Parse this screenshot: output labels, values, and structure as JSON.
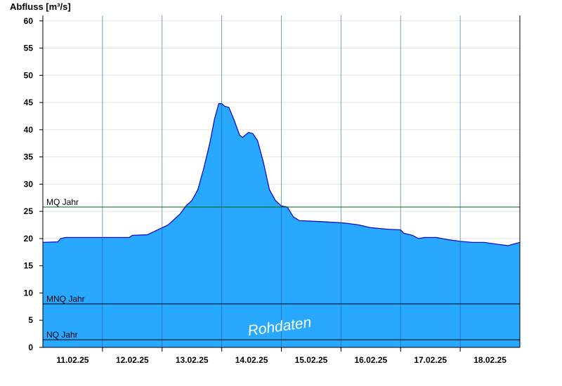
{
  "chart_data": {
    "type": "area",
    "ylabel": "Abfluss [m³/s]",
    "xlabel": "",
    "ylim": [
      0,
      61
    ],
    "yticks": [
      0,
      5,
      10,
      15,
      20,
      25,
      30,
      35,
      40,
      45,
      50,
      55,
      60
    ],
    "xlim": [
      0,
      8
    ],
    "xtick_labels": [
      "11.02.25",
      "12.02.25",
      "13.02.25",
      "14.02.25",
      "15.02.25",
      "16.02.25",
      "17.02.25",
      "18.02.25"
    ],
    "day_boundaries": [
      1,
      2,
      3,
      4,
      5,
      6,
      7
    ],
    "grid": true,
    "fill_color": "#29a8ff",
    "line_color": "#0000cc",
    "series": [
      {
        "points": [
          [
            0.0,
            19.3
          ],
          [
            0.25,
            19.4
          ],
          [
            0.3,
            20.0
          ],
          [
            0.38,
            20.2
          ],
          [
            1.0,
            20.2
          ],
          [
            1.45,
            20.2
          ],
          [
            1.5,
            20.6
          ],
          [
            1.75,
            20.7
          ],
          [
            1.85,
            21.2
          ],
          [
            2.0,
            22.0
          ],
          [
            2.1,
            22.5
          ],
          [
            2.2,
            23.5
          ],
          [
            2.3,
            24.5
          ],
          [
            2.4,
            26.0
          ],
          [
            2.5,
            27.0
          ],
          [
            2.6,
            29.0
          ],
          [
            2.7,
            33.0
          ],
          [
            2.8,
            37.5
          ],
          [
            2.88,
            42.0
          ],
          [
            2.95,
            44.8
          ],
          [
            3.0,
            44.8
          ],
          [
            3.05,
            44.3
          ],
          [
            3.12,
            44.1
          ],
          [
            3.2,
            42.0
          ],
          [
            3.3,
            39.0
          ],
          [
            3.35,
            38.6
          ],
          [
            3.45,
            39.5
          ],
          [
            3.52,
            39.3
          ],
          [
            3.6,
            38.0
          ],
          [
            3.7,
            34.0
          ],
          [
            3.8,
            29.0
          ],
          [
            3.9,
            27.0
          ],
          [
            4.0,
            26.0
          ],
          [
            4.1,
            25.8
          ],
          [
            4.2,
            24.0
          ],
          [
            4.3,
            23.3
          ],
          [
            4.5,
            23.2
          ],
          [
            4.7,
            23.1
          ],
          [
            5.0,
            22.9
          ],
          [
            5.1,
            22.8
          ],
          [
            5.3,
            22.5
          ],
          [
            5.5,
            22.0
          ],
          [
            5.8,
            21.7
          ],
          [
            6.0,
            21.6
          ],
          [
            6.05,
            21.0
          ],
          [
            6.2,
            20.6
          ],
          [
            6.3,
            20.0
          ],
          [
            6.4,
            20.2
          ],
          [
            6.6,
            20.2
          ],
          [
            6.8,
            19.8
          ],
          [
            7.0,
            19.5
          ],
          [
            7.2,
            19.3
          ],
          [
            7.4,
            19.3
          ],
          [
            7.6,
            19.0
          ],
          [
            7.8,
            18.7
          ],
          [
            7.9,
            19.0
          ],
          [
            8.0,
            19.3
          ]
        ]
      }
    ],
    "reference_lines": [
      {
        "label": "MQ Jahr",
        "value": 25.8,
        "color": "#006400"
      },
      {
        "label": "MNQ Jahr",
        "value": 8.0,
        "color": "#000000"
      },
      {
        "label": "NQ Jahr",
        "value": 1.4,
        "color": "#000000"
      }
    ],
    "annotation": "Rohdaten"
  }
}
